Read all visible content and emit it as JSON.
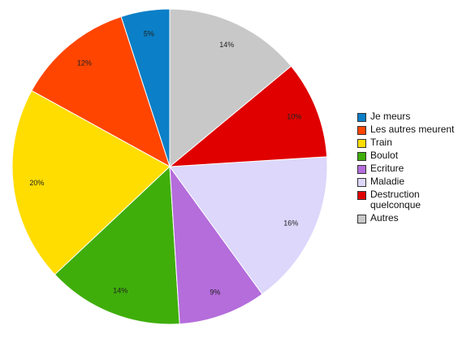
{
  "chart_data": {
    "type": "pie",
    "categories": [
      "Je meurs",
      "Les autres meurent",
      "Train",
      "Boulot",
      "Ecriture",
      "Maladie",
      "Destruction quelconque",
      "Autres"
    ],
    "values": [
      5,
      12,
      20,
      14,
      9,
      16,
      10,
      14
    ],
    "value_labels": [
      "5%",
      "12%",
      "20%",
      "14%",
      "9%",
      "16%",
      "10%",
      "14%"
    ],
    "colors": [
      "#0b7fc7",
      "#ff4500",
      "#ffdd00",
      "#3fae0a",
      "#b46ddb",
      "#dcd7fb",
      "#e00000",
      "#c8c8c8"
    ],
    "direction": "counterclockwise",
    "legend": "right"
  }
}
